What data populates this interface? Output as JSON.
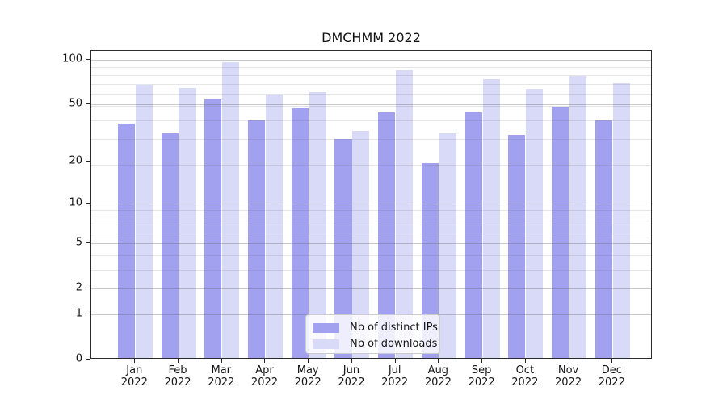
{
  "chart_data": {
    "type": "bar",
    "title": "DMCHMM 2022",
    "months": [
      "Jan",
      "Feb",
      "Mar",
      "Apr",
      "May",
      "Jun",
      "Jul",
      "Aug",
      "Sep",
      "Oct",
      "Nov",
      "Dec"
    ],
    "year": "2022",
    "series": [
      {
        "name": "Nb of distinct IPs",
        "color": "#a1a1f0",
        "values": [
          36,
          31,
          53,
          38,
          46,
          28,
          43,
          19,
          43,
          30,
          47,
          38
        ]
      },
      {
        "name": "Nb of downloads",
        "color": "#d9d9f8",
        "values": [
          66,
          63,
          94,
          57,
          59,
          32,
          83,
          31,
          72,
          62,
          76,
          68
        ]
      }
    ],
    "y_scale": "log10(value+1)",
    "y_ticks": [
      0,
      1,
      2,
      5,
      10,
      20,
      50,
      100
    ],
    "y_minor_gridlines": [
      3,
      4,
      6,
      7,
      8,
      9,
      19,
      29,
      39,
      49,
      59,
      69,
      79,
      89
    ],
    "ylim": [
      0,
      114
    ],
    "grid": "on, drawn above bars",
    "legend_position": "lower center"
  },
  "colors": {
    "bar_distinct_ips": "#a1a1f0",
    "bar_downloads": "#d9d9f8",
    "grid_major": "#c9c9c9",
    "grid_minor": "#e6e6e6",
    "axis": "#2b2b2b",
    "text": "#151515"
  }
}
